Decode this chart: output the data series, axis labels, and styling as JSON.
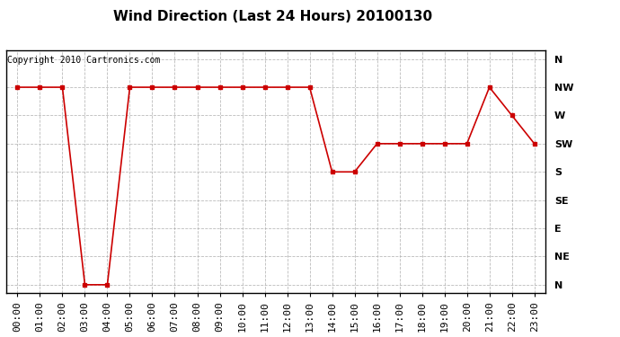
{
  "title": "Wind Direction (Last 24 Hours) 20100130",
  "copyright_text": "Copyright 2010 Cartronics.com",
  "x_labels": [
    "00:00",
    "01:00",
    "02:00",
    "03:00",
    "04:00",
    "05:00",
    "06:00",
    "07:00",
    "08:00",
    "09:00",
    "10:00",
    "11:00",
    "12:00",
    "13:00",
    "14:00",
    "15:00",
    "16:00",
    "17:00",
    "18:00",
    "19:00",
    "20:00",
    "21:00",
    "22:00",
    "23:00"
  ],
  "y_labels": [
    "N",
    "NE",
    "E",
    "SE",
    "S",
    "SW",
    "W",
    "NW",
    "N"
  ],
  "y_values": [
    0,
    1,
    2,
    3,
    4,
    5,
    6,
    7,
    8
  ],
  "wind_data": {
    "00:00": 7,
    "01:00": 7,
    "02:00": 7,
    "03:00": 0,
    "04:00": 0,
    "05:00": 7,
    "06:00": 7,
    "07:00": 7,
    "08:00": 7,
    "09:00": 7,
    "10:00": 7,
    "11:00": 7,
    "12:00": 7,
    "13:00": 7,
    "14:00": 4,
    "15:00": 4,
    "16:00": 5,
    "17:00": 5,
    "18:00": 5,
    "19:00": 5,
    "20:00": 5,
    "21:00": 7,
    "22:00": 6,
    "23:00": 5
  },
  "line_color": "#cc0000",
  "marker": "s",
  "marker_size": 3,
  "background_color": "#ffffff",
  "grid_color": "#aaaaaa",
  "title_fontsize": 11,
  "copyright_fontsize": 7,
  "axis_label_fontsize": 8,
  "ytick_fontsize": 8
}
